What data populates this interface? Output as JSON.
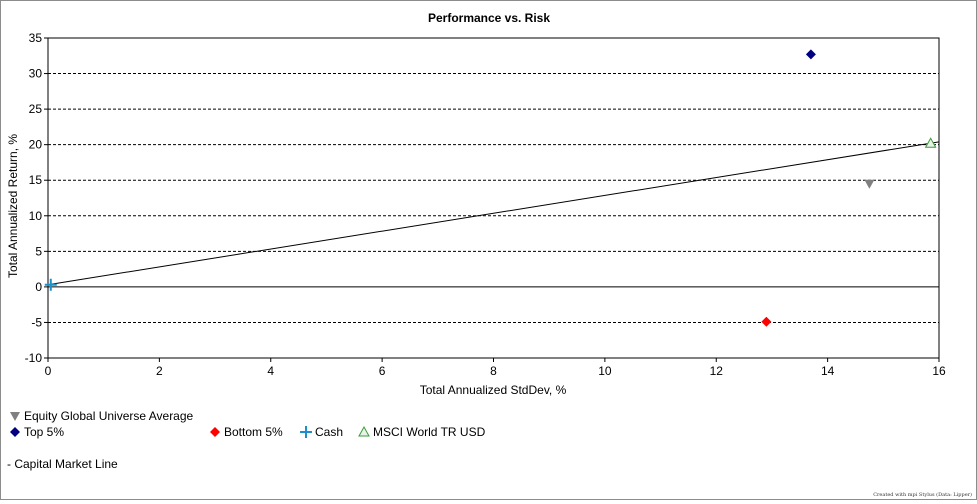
{
  "chart_data": {
    "type": "scatter",
    "title": "Performance vs. Risk",
    "xlabel": "Total Annualized StdDev, %",
    "ylabel": "Total Annualized Return, %",
    "xlim": [
      0,
      16
    ],
    "ylim": [
      -10,
      35
    ],
    "x_ticks": [
      0,
      2,
      4,
      6,
      8,
      10,
      12,
      14,
      16
    ],
    "y_ticks": [
      -10,
      -5,
      0,
      5,
      10,
      15,
      20,
      25,
      30,
      35
    ],
    "grid": "horizontal dashed",
    "legend_position": "bottom",
    "series": [
      {
        "name": "Equity Global Universe Average",
        "marker": "triangle-down",
        "color": "#808080",
        "x": 14.75,
        "y": 14.5
      },
      {
        "name": "Top 5%",
        "marker": "diamond",
        "color": "#000080",
        "x": 13.7,
        "y": 32.7
      },
      {
        "name": "Bottom 5%",
        "marker": "diamond",
        "color": "#ff0000",
        "x": 12.9,
        "y": -4.9
      },
      {
        "name": "Cash",
        "marker": "plus",
        "color": "#1e90c8",
        "x": 0.05,
        "y": 0.3
      },
      {
        "name": "MSCI World TR USD",
        "marker": "triangle-outline",
        "color": "#3c9a3c",
        "x": 15.85,
        "y": 20.2
      }
    ],
    "lines": [
      {
        "name": "Capital Market Line",
        "color": "#000000",
        "points": [
          [
            0,
            0.3
          ],
          [
            16,
            20.4
          ]
        ]
      }
    ],
    "legend_line_label": "- Capital Market Line"
  },
  "footer_text": "Created with mpi Stylus (Data: Lipper)"
}
